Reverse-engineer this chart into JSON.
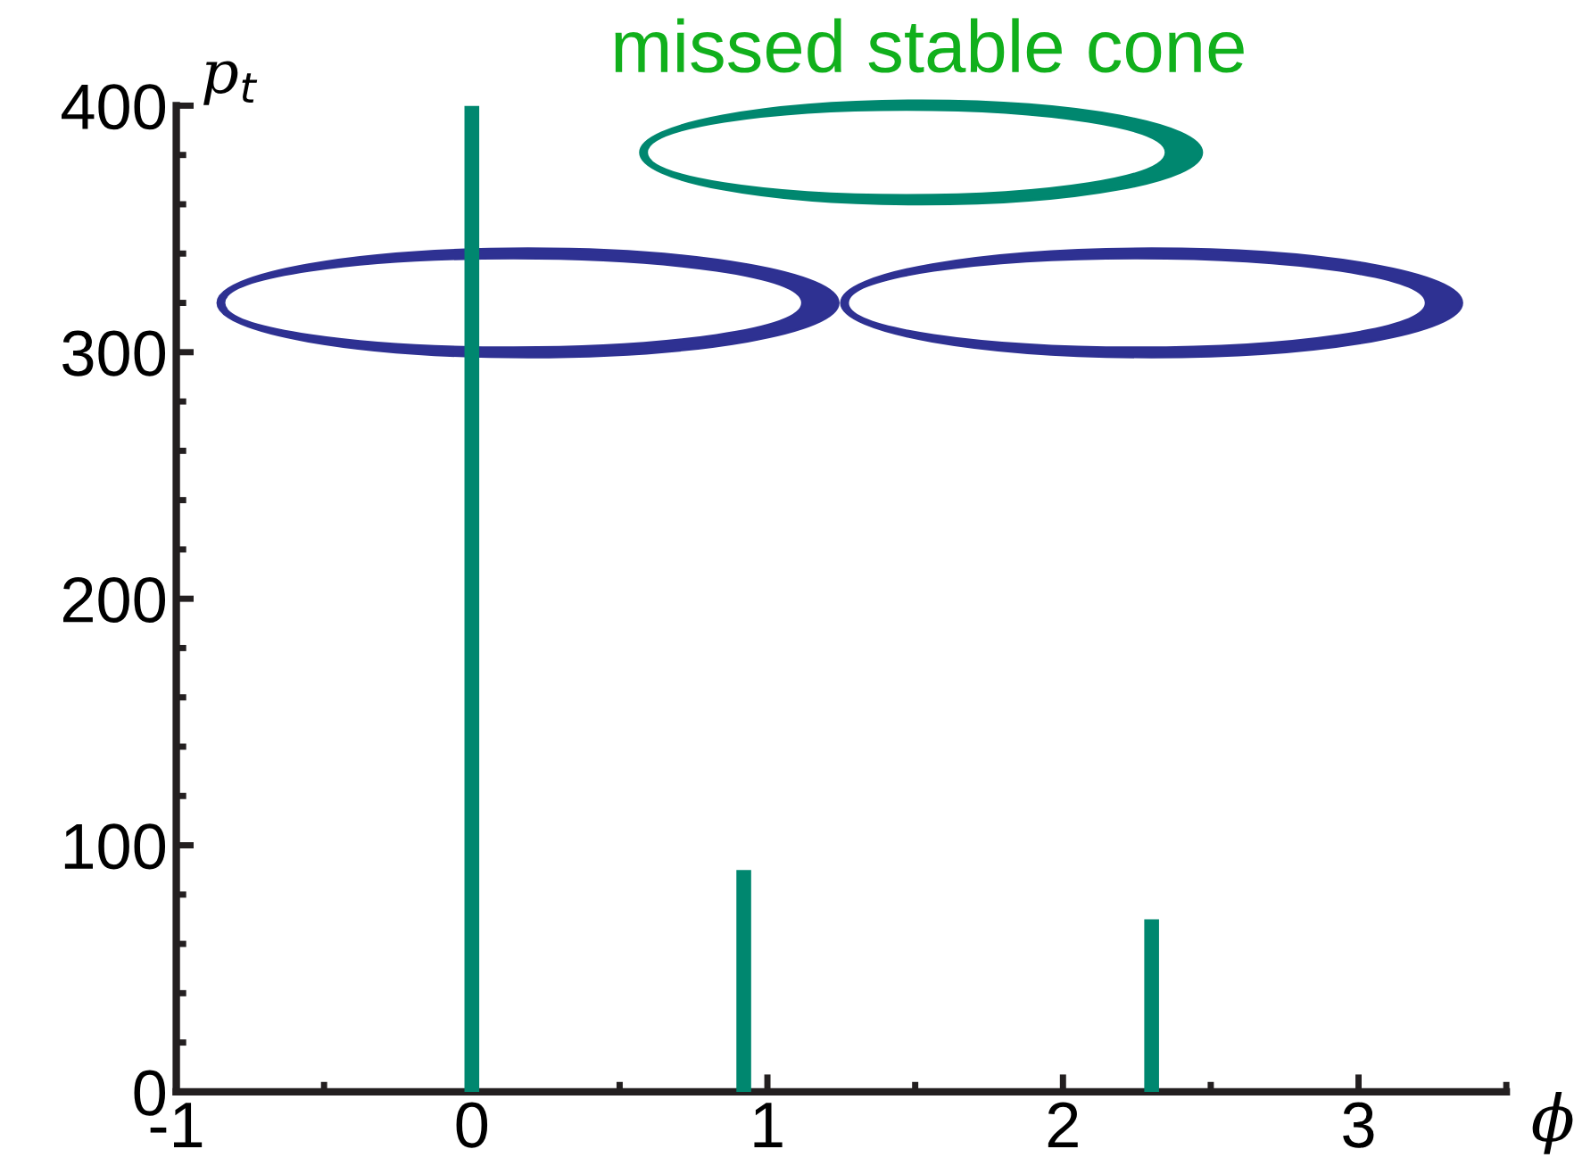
{
  "chart_data": {
    "type": "bar",
    "x": [
      0,
      0.92,
      2.3
    ],
    "values": [
      400,
      90,
      70
    ],
    "color": "#00876f",
    "xlabel": "ϕ",
    "ylabel": "p$_{t}$",
    "annotations": [
      "missed stable cone"
    ],
    "xlim": [
      -1,
      3.5
    ],
    "ylim": [
      0,
      400
    ],
    "xticks": [
      -1,
      0,
      1,
      2,
      3
    ],
    "yticks": [
      0,
      100,
      200,
      300,
      400
    ],
    "grid": false
  }
}
